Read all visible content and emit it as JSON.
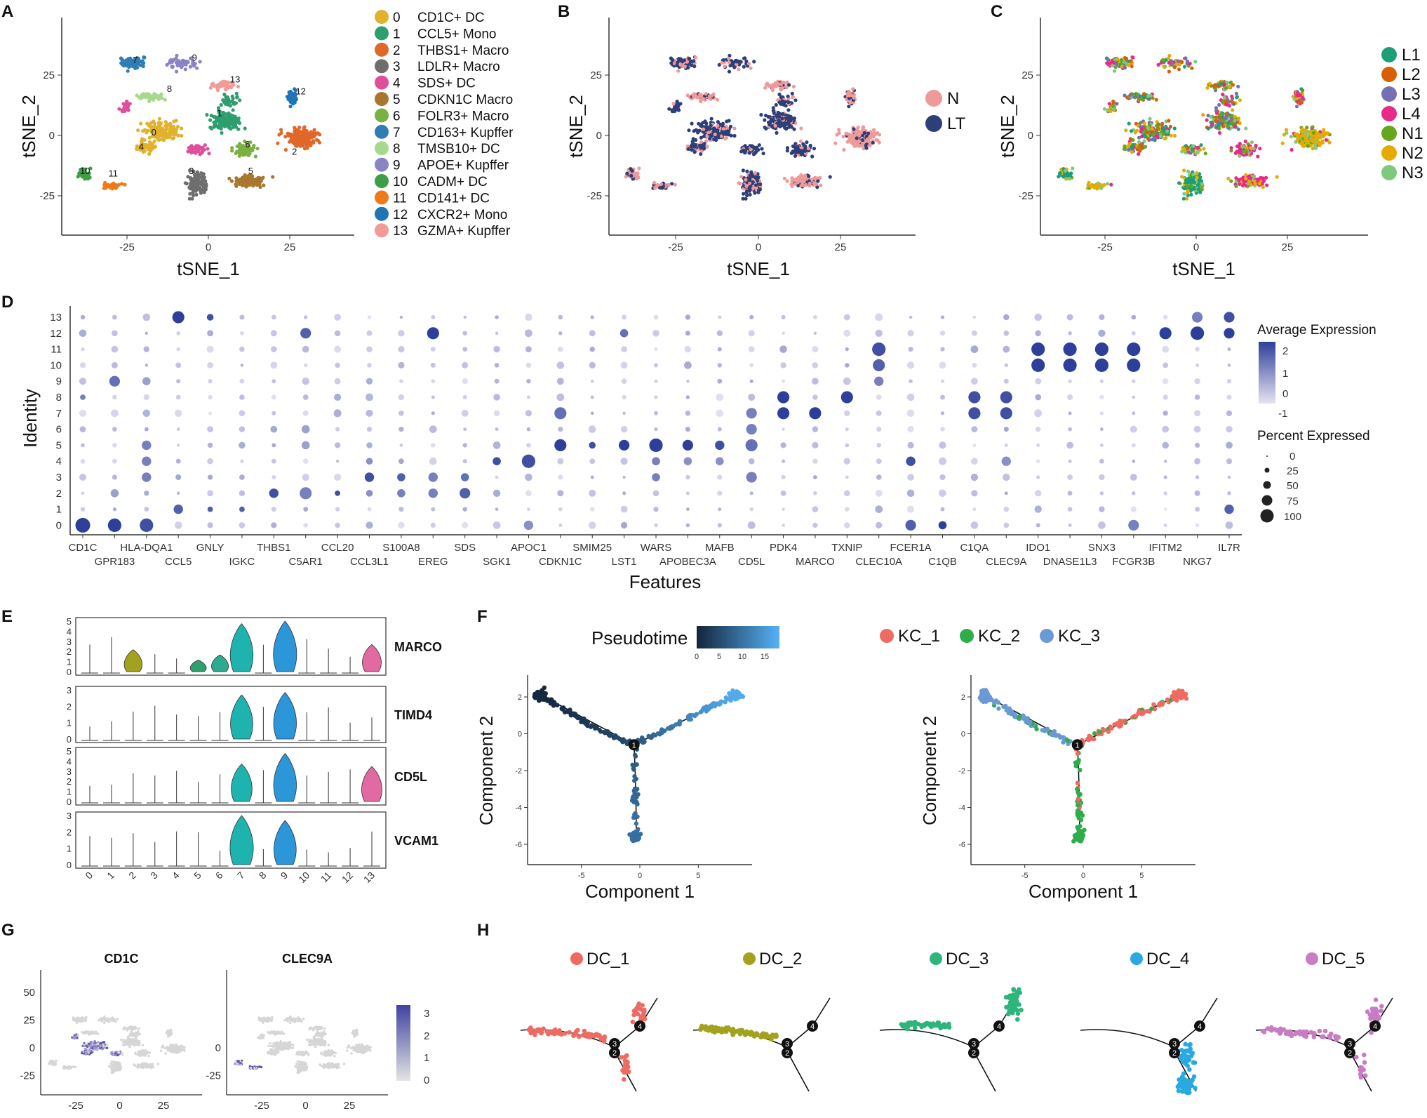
{
  "panels": [
    "A",
    "B",
    "C",
    "D",
    "E",
    "F",
    "G",
    "H"
  ],
  "chart_data": [
    {
      "panel": "A",
      "type": "scatter",
      "xlabel": "tSNE_1",
      "ylabel": "tSNE_2",
      "xticks": [
        "-25",
        "0",
        "25"
      ],
      "yticks": [
        "25",
        "0",
        "-25"
      ],
      "legend": {
        "ids": [
          "0",
          "1",
          "2",
          "3",
          "4",
          "5",
          "6",
          "7",
          "8",
          "9",
          "10",
          "11",
          "12",
          "13"
        ],
        "labels": [
          "CD1C+ DC",
          "CCL5+ Mono",
          "THBS1+ Macro",
          "LDLR+ Macro",
          "SDS+ DC",
          "CDKN1C Macro",
          "FOLR3+ Macro",
          "CD163+ Kupffer",
          "TMSB10+ DC",
          "APOE+ Kupffer",
          "CADM+ DC",
          "CD141+ DC",
          "CXCR2+ Mono",
          "GZMA+ Kupffer"
        ],
        "colors": [
          "#E0B22E",
          "#2F9E6E",
          "#E0672A",
          "#6E6E6E",
          "#DF4E9B",
          "#A8762E",
          "#7BB043",
          "#2F7DB4",
          "#A6D98E",
          "#8A83C4",
          "#3E9E48",
          "#F07A1A",
          "#1F74B4",
          "#F19A96"
        ]
      },
      "cluster_labels": [
        "0",
        "1",
        "2",
        "3",
        "4",
        "5",
        "6",
        "7",
        "8",
        "9",
        "10",
        "11",
        "12",
        "13"
      ]
    },
    {
      "panel": "B",
      "type": "scatter",
      "xlabel": "tSNE_1",
      "ylabel": "tSNE_2",
      "xticks": [
        "-25",
        "0",
        "25"
      ],
      "yticks": [
        "25",
        "0",
        "-25"
      ],
      "legend": {
        "labels": [
          "N",
          "LT"
        ],
        "colors": [
          "#EE9A9A",
          "#2E3F78"
        ]
      }
    },
    {
      "panel": "C",
      "type": "scatter",
      "xlabel": "tSNE_1",
      "ylabel": "tSNE_2",
      "xticks": [
        "-25",
        "0",
        "25"
      ],
      "yticks": [
        "25",
        "0",
        "-25"
      ],
      "legend": {
        "labels": [
          "L1",
          "L2",
          "L3",
          "L4",
          "N1",
          "N2",
          "N3"
        ],
        "colors": [
          "#1D9E77",
          "#D95F02",
          "#7570B3",
          "#E7298A",
          "#66A61E",
          "#E6AB02",
          "#7FC97F"
        ]
      }
    },
    {
      "panel": "D",
      "type": "dot",
      "xlabel": "Features",
      "ylabel": "Identity",
      "identities": [
        "13",
        "12",
        "11",
        "10",
        "9",
        "8",
        "7",
        "6",
        "5",
        "4",
        "3",
        "2",
        "1",
        "0"
      ],
      "features_top": [
        "CD1C",
        "HLA-DQA1",
        "GNLY",
        "THBS1",
        "CCL20",
        "S100A8",
        "SDS",
        "APOC1",
        "SMIM25",
        "WARS",
        "MAFB",
        "PDK4",
        "TXNIP",
        "FCER1A",
        "C1QA",
        "IDO1",
        "SNX3",
        "IFITM2",
        "IL7R"
      ],
      "features_bottom": [
        "GPR183",
        "CCL5",
        "IGKC",
        "C5AR1",
        "CCL3L1",
        "EREG",
        "SGK1",
        "CDKN1C",
        "LST1",
        "APOBEC3A",
        "CD5L",
        "MARCO",
        "CLEC10A",
        "C1QB",
        "CLEC9A",
        "DNASE1L3",
        "FCGR3B",
        "NKG7"
      ],
      "color_legend": {
        "title": "Average Expression",
        "ticks": [
          "2",
          "1",
          "0",
          "-1"
        ],
        "low": "#E0DCEE",
        "high": "#2E3F99"
      },
      "size_legend": {
        "title": "Percent Expressed",
        "ticks": [
          "0",
          "25",
          "50",
          "75",
          "100"
        ]
      }
    },
    {
      "panel": "E",
      "type": "violin",
      "genes": [
        "MARCO",
        "TIMD4",
        "CD5L",
        "VCAM1"
      ],
      "clusters": [
        "0",
        "1",
        "2",
        "3",
        "4",
        "5",
        "6",
        "7",
        "8",
        "9",
        "10",
        "11",
        "12",
        "13"
      ],
      "ymax": [
        5,
        3,
        5,
        3
      ],
      "yticks": [
        [
          "0",
          "1",
          "2",
          "3",
          "4",
          "5"
        ],
        [
          "0",
          "1",
          "2",
          "3"
        ],
        [
          "0",
          "1",
          "2",
          "3",
          "4",
          "5"
        ],
        [
          "0",
          "1",
          "2",
          "3"
        ]
      ]
    },
    {
      "panel": "F",
      "type": "trajectory",
      "xlabel": "Component 1",
      "ylabel": "Component 2",
      "xticks": [
        "-5",
        "0",
        "5"
      ],
      "yticks": [
        "2",
        "0",
        "-2",
        "-4",
        "-6"
      ],
      "pseudotime": {
        "title": "Pseudotime",
        "ticks": [
          "0",
          "5",
          "10",
          "15"
        ]
      },
      "states": {
        "labels": [
          "KC_1",
          "KC_2",
          "KC_3"
        ],
        "colors": [
          "#EE6B62",
          "#2EAD4B",
          "#6A9AD6"
        ]
      },
      "branch_node": "1"
    },
    {
      "panel": "G",
      "type": "scatter",
      "plots": [
        "CD1C",
        "CLEC9A"
      ],
      "xticks": [
        "-25",
        "0",
        "25"
      ],
      "yticks": [
        "50",
        "25",
        "0",
        "-25"
      ],
      "colorbar_ticks": [
        "3",
        "2",
        "1",
        "0"
      ]
    },
    {
      "panel": "H",
      "type": "trajectory",
      "states": [
        "DC_1",
        "DC_2",
        "DC_3",
        "DC_4",
        "DC_5"
      ],
      "colors": [
        "#EE6B62",
        "#A3A21F",
        "#2EB57B",
        "#2AA9E0",
        "#C77CC4"
      ],
      "node_labels": [
        "4",
        "3",
        "2"
      ]
    }
  ]
}
